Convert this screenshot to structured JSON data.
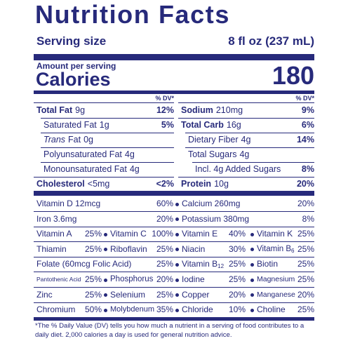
{
  "header": {
    "title": "Nutrition Facts",
    "serving_size_label": "Serving size",
    "serving_size_value": "8 fl oz (237 mL)"
  },
  "calories": {
    "amount_per_serving": "Amount per serving",
    "label": "Calories",
    "value": 180
  },
  "nutrients": {
    "left": {
      "dv_header": "% DV*",
      "rows": [
        {
          "name": "Total Fat",
          "amount": "9g",
          "dv": "12%"
        },
        {
          "name": "Saturated Fat",
          "amount": "1g",
          "dv": "5%"
        },
        {
          "name_italic": "Trans",
          "name": "Fat",
          "amount": "0g"
        },
        {
          "name": "Polyunsaturated Fat",
          "amount": "4g"
        },
        {
          "name": "Monounsaturated Fat",
          "amount": "4g"
        },
        {
          "name": "Cholesterol",
          "amount": "<5mg",
          "dv": "<2%"
        }
      ]
    },
    "right": {
      "dv_header": "% DV*",
      "rows": [
        {
          "name": "Sodium",
          "amount": "210mg",
          "dv": "9%"
        },
        {
          "name": "Total Carb",
          "amount": "16g",
          "dv": "6%"
        },
        {
          "name": "Dietary Fiber",
          "amount": "4g",
          "dv": "14%"
        },
        {
          "name": "Total Sugars",
          "amount": "4g"
        },
        {
          "name": "Incl. 4g Added Sugars",
          "dv": "8%"
        },
        {
          "name": "Protein",
          "amount": "10g",
          "dv": "20%"
        }
      ]
    }
  },
  "vitamins_minerals": [
    [
      {
        "name": "Vitamin D 12mcg",
        "dv": "60%"
      },
      {
        "name": "Calcium 260mg",
        "dv": "20%"
      }
    ],
    [
      {
        "name": "Iron 3.6mg",
        "dv": "20%"
      },
      {
        "name": "Potassium 380mg",
        "dv": "8%"
      }
    ],
    [
      {
        "name": "Vitamin A",
        "dv": "25%"
      },
      {
        "name": "Vitamin C",
        "dv": "100%"
      },
      {
        "name": "Vitamin E",
        "dv": "40%"
      },
      {
        "name": "Vitamin K",
        "dv": "25%"
      }
    ],
    [
      {
        "name": "Thiamin",
        "dv": "25%"
      },
      {
        "name": "Riboflavin",
        "dv": "25%"
      },
      {
        "name": "Niacin",
        "dv": "30%"
      },
      {
        "name": "Vitamin B",
        "subscript": "6",
        "dv": "25%"
      }
    ],
    [
      {
        "name": "Folate (60mcg Folic Acid)",
        "dv": "25%"
      },
      {
        "name": "Vitamin B",
        "subscript": "12",
        "dv": "25%"
      },
      {
        "name": "Biotin",
        "dv": "25%"
      }
    ],
    [
      {
        "name": "Pantothenic Acid",
        "dv": "25%"
      },
      {
        "name": "Phosphorus",
        "dv": "20%"
      },
      {
        "name": "Iodine",
        "dv": "25%"
      },
      {
        "name": "Magnesium",
        "dv": "25%"
      }
    ],
    [
      {
        "name": "Zinc",
        "dv": "25%"
      },
      {
        "name": "Selenium",
        "dv": "25%"
      },
      {
        "name": "Copper",
        "dv": "20%"
      },
      {
        "name": "Manganese",
        "dv": "20%"
      }
    ],
    [
      {
        "name": "Chromium",
        "dv": "50%"
      },
      {
        "name": "Molybdenum",
        "dv": "35%"
      },
      {
        "name": "Chloride",
        "dv": "10%"
      },
      {
        "name": "Choline",
        "dv": "25%"
      }
    ]
  ],
  "footnote": "*The % Daily Value (DV) tells you how much a nutrient in a serving of food contributes to a daily diet. 2,000 calories a day is used for general nutrition advice."
}
